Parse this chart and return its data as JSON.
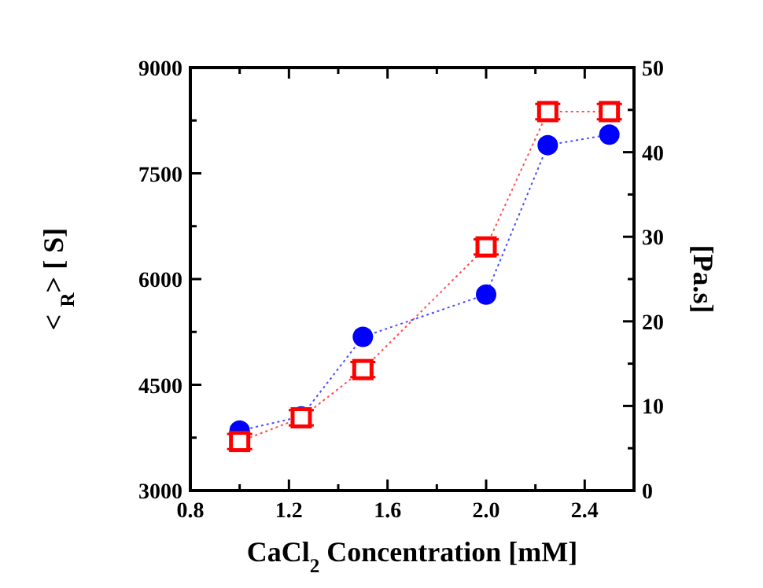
{
  "chart_data": {
    "type": "line",
    "xlabel": "CaCl$_{2}$ Concentration [mM]",
    "ylabel": "<  $_{R}$> [  S]",
    "y2label": "[Pa.s]",
    "xlim": [
      0.8,
      2.6
    ],
    "xticks": [
      0.8,
      {
        "value": 1.0,
        "label": null
      },
      1.2,
      {
        "value": 1.4,
        "label": null
      },
      1.6,
      {
        "value": 1.8,
        "label": null
      },
      {
        "value": 2.0,
        "label": "2.0"
      },
      {
        "value": 2.2,
        "label": null
      },
      2.4,
      {
        "value": 2.6,
        "label": null
      }
    ],
    "ylim": [
      3000,
      9000
    ],
    "yticks": [
      3000,
      {
        "value": 3750,
        "label": null
      },
      4500,
      {
        "value": 5250,
        "label": null
      },
      6000,
      {
        "value": 6750,
        "label": null
      },
      7500,
      {
        "value": 8250,
        "label": null
      },
      9000
    ],
    "y2lim": [
      0,
      50
    ],
    "y2ticks": [
      0,
      {
        "value": 5,
        "label": null
      },
      10,
      {
        "value": 15,
        "label": null
      },
      20,
      {
        "value": 25,
        "label": null
      },
      30,
      {
        "value": 35,
        "label": null
      },
      40,
      {
        "value": 45,
        "label": null
      },
      50
    ],
    "x": [
      1.0,
      1.25,
      1.5,
      2.0,
      2.25,
      2.5
    ],
    "line_style": "dotted",
    "series": [
      {
        "color": "#0000ff",
        "marker": "circle",
        "values": [
          3850,
          4050,
          5180,
          5780,
          7900,
          8050
        ]
      },
      {
        "color": "#ff0000",
        "marker": "square",
        "axis": "y2",
        "values": [
          5.8,
          8.6,
          14.3,
          28.8,
          44.8,
          44.8
        ],
        "errors": [
          0.9,
          0.9,
          0.9,
          0.9,
          0.9,
          0.9
        ]
      }
    ]
  }
}
